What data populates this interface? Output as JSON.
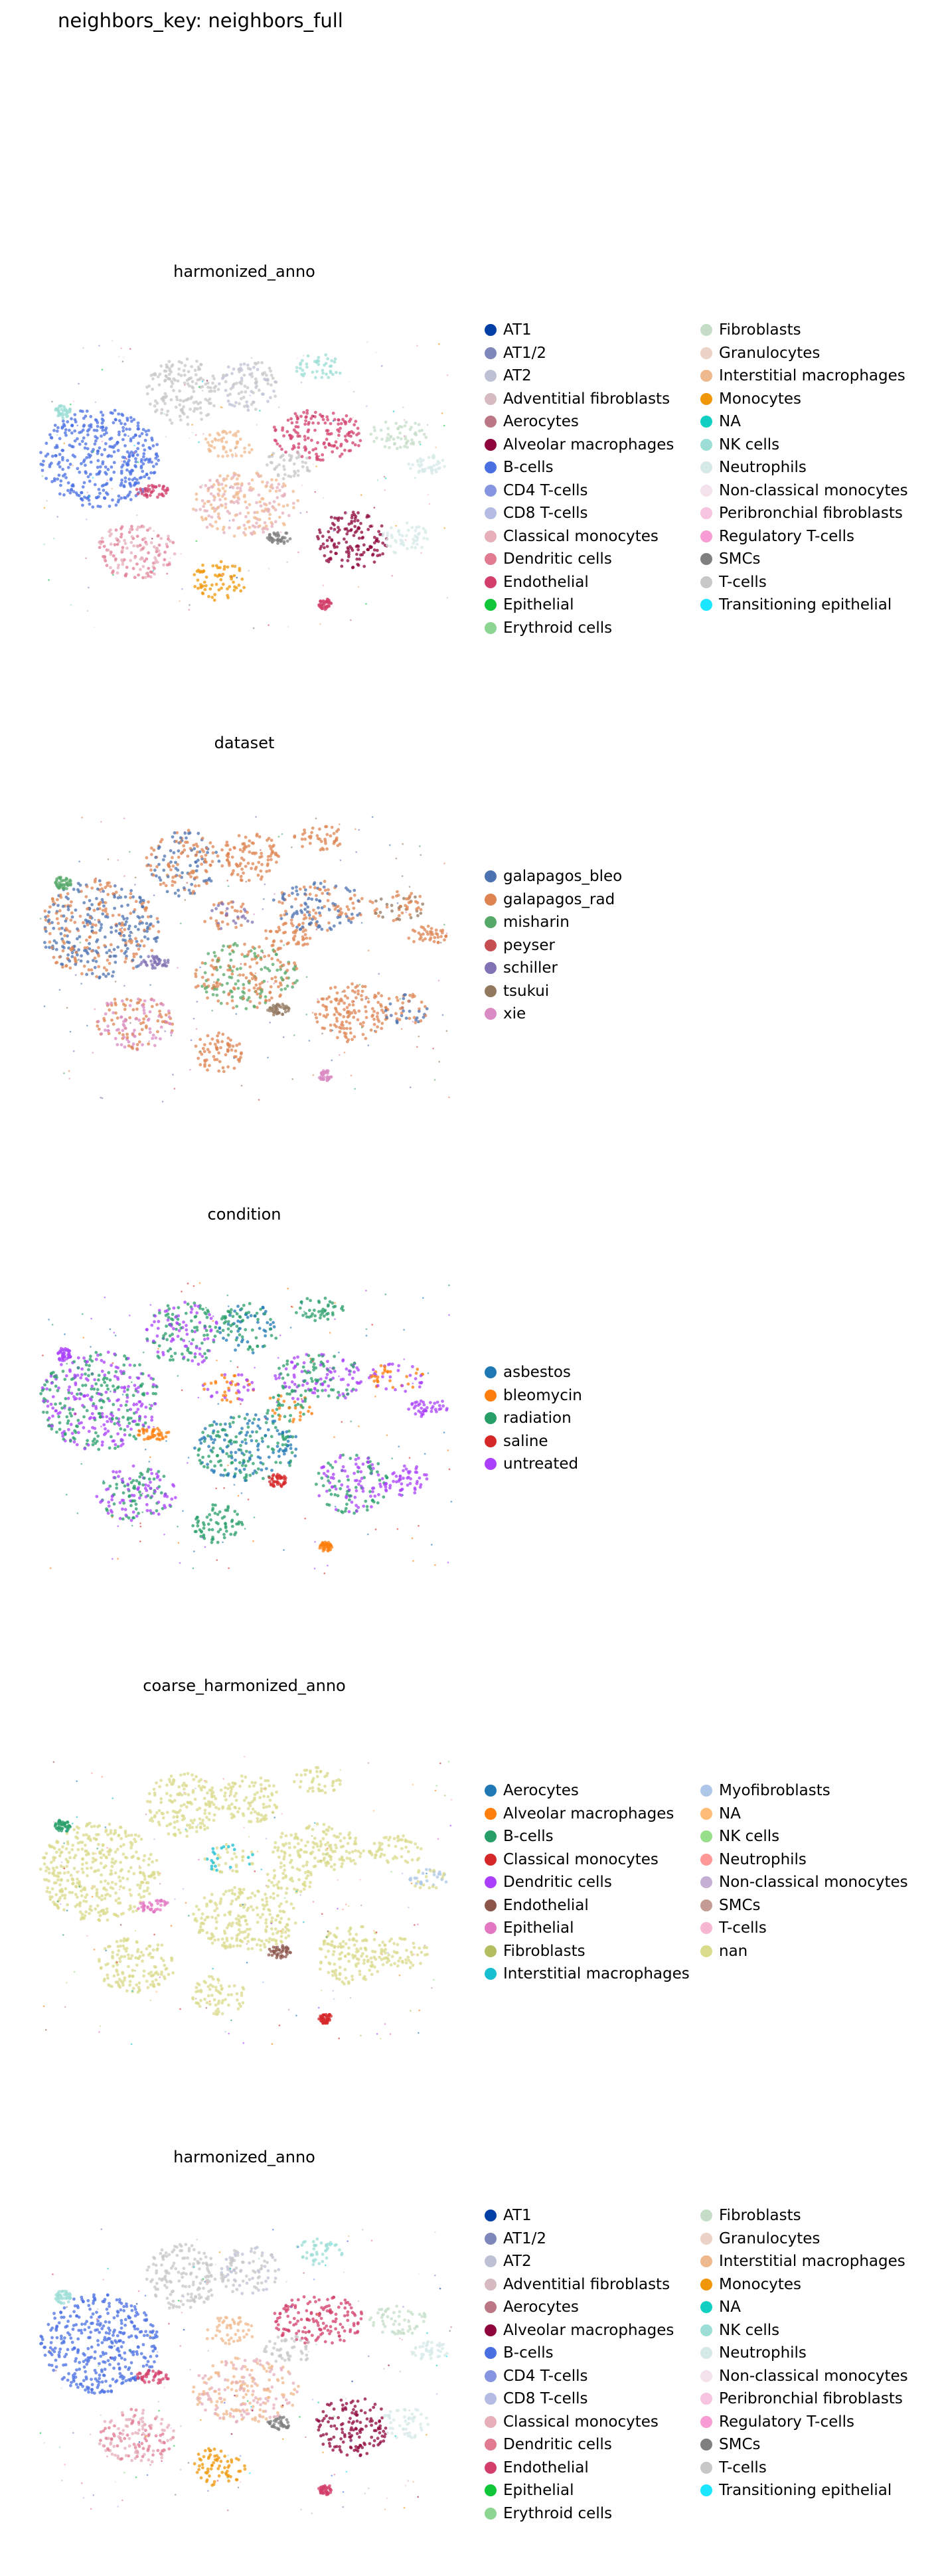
{
  "suptitle": "neighbors_key: neighbors_full",
  "chart_data": [
    {
      "type": "scatter",
      "title": "harmonized_anno",
      "xlabel": "",
      "ylabel": "",
      "axes": "off",
      "legend_location": "right",
      "legend_columns": 2,
      "categories": [
        {
          "name": "AT1",
          "color": "#023fa5"
        },
        {
          "name": "AT1/2",
          "color": "#7d87b9"
        },
        {
          "name": "AT2",
          "color": "#bec1d4"
        },
        {
          "name": "Adventitial fibroblasts",
          "color": "#d6bcc0"
        },
        {
          "name": "Aerocytes",
          "color": "#bb7784"
        },
        {
          "name": "Alveolar macrophages",
          "color": "#8e063b"
        },
        {
          "name": "B-cells",
          "color": "#4a6fe3"
        },
        {
          "name": "CD4 T-cells",
          "color": "#8595e1"
        },
        {
          "name": "CD8 T-cells",
          "color": "#b5bbe3"
        },
        {
          "name": "Classical monocytes",
          "color": "#e6afb9"
        },
        {
          "name": "Dendritic cells",
          "color": "#e07b91"
        },
        {
          "name": "Endothelial",
          "color": "#d33f6a"
        },
        {
          "name": "Epithelial",
          "color": "#11c638"
        },
        {
          "name": "Erythroid cells",
          "color": "#8dd593"
        },
        {
          "name": "Fibroblasts",
          "color": "#c6dec7"
        },
        {
          "name": "Granulocytes",
          "color": "#ead3c6"
        },
        {
          "name": "Interstitial macrophages",
          "color": "#f0b98d"
        },
        {
          "name": "Monocytes",
          "color": "#ef9708"
        },
        {
          "name": "NA",
          "color": "#0fcfc0"
        },
        {
          "name": "NK cells",
          "color": "#9cded6"
        },
        {
          "name": "Neutrophils",
          "color": "#d5eae7"
        },
        {
          "name": "Non-classical monocytes",
          "color": "#f3e1eb"
        },
        {
          "name": "Peribronchial fibroblasts",
          "color": "#f6c4e1"
        },
        {
          "name": "Regulatory T-cells",
          "color": "#f79cd4"
        },
        {
          "name": "SMCs",
          "color": "#7f7f7f"
        },
        {
          "name": "T-cells",
          "color": "#c7c7c7"
        },
        {
          "name": "Transitioning epithelial",
          "color": "#1ce6ff"
        }
      ]
    },
    {
      "type": "scatter",
      "title": "dataset",
      "xlabel": "",
      "ylabel": "",
      "axes": "off",
      "legend_location": "right",
      "legend_columns": 1,
      "categories": [
        {
          "name": "galapagos_bleo",
          "color": "#4c72b0"
        },
        {
          "name": "galapagos_rad",
          "color": "#dd8452"
        },
        {
          "name": "misharin",
          "color": "#55a868"
        },
        {
          "name": "peyser",
          "color": "#c44e52"
        },
        {
          "name": "schiller",
          "color": "#8172b3"
        },
        {
          "name": "tsukui",
          "color": "#937860"
        },
        {
          "name": "xie",
          "color": "#da8bc3"
        }
      ]
    },
    {
      "type": "scatter",
      "title": "condition",
      "xlabel": "",
      "ylabel": "",
      "axes": "off",
      "legend_location": "right",
      "legend_columns": 1,
      "categories": [
        {
          "name": "asbestos",
          "color": "#1f77b4"
        },
        {
          "name": "bleomycin",
          "color": "#ff7f0e"
        },
        {
          "name": "radiation",
          "color": "#279e68"
        },
        {
          "name": "saline",
          "color": "#d62728"
        },
        {
          "name": "untreated",
          "color": "#aa40fc"
        }
      ]
    },
    {
      "type": "scatter",
      "title": "coarse_harmonized_anno",
      "xlabel": "",
      "ylabel": "",
      "axes": "off",
      "legend_location": "right",
      "legend_columns": 2,
      "categories": [
        {
          "name": "Aerocytes",
          "color": "#1f77b4"
        },
        {
          "name": "Alveolar macrophages",
          "color": "#ff7f0e"
        },
        {
          "name": "B-cells",
          "color": "#279e68"
        },
        {
          "name": "Classical monocytes",
          "color": "#d62728"
        },
        {
          "name": "Dendritic cells",
          "color": "#aa40fc"
        },
        {
          "name": "Endothelial",
          "color": "#8c564b"
        },
        {
          "name": "Epithelial",
          "color": "#e377c2"
        },
        {
          "name": "Fibroblasts",
          "color": "#b5bd61"
        },
        {
          "name": "Interstitial macrophages",
          "color": "#17becf"
        },
        {
          "name": "Myofibroblasts",
          "color": "#aec7e8"
        },
        {
          "name": "NA",
          "color": "#ffbb78"
        },
        {
          "name": "NK cells",
          "color": "#98df8a"
        },
        {
          "name": "Neutrophils",
          "color": "#ff9896"
        },
        {
          "name": "Non-classical monocytes",
          "color": "#c5b0d5"
        },
        {
          "name": "SMCs",
          "color": "#c49c94"
        },
        {
          "name": "T-cells",
          "color": "#f7b6d2"
        },
        {
          "name": "nan",
          "color": "#dbdb8d"
        }
      ]
    },
    {
      "type": "scatter",
      "title": "harmonized_anno",
      "xlabel": "",
      "ylabel": "",
      "axes": "off",
      "legend_location": "right",
      "legend_columns": 2,
      "categories": [
        {
          "name": "AT1",
          "color": "#023fa5"
        },
        {
          "name": "AT1/2",
          "color": "#7d87b9"
        },
        {
          "name": "AT2",
          "color": "#bec1d4"
        },
        {
          "name": "Adventitial fibroblasts",
          "color": "#d6bcc0"
        },
        {
          "name": "Aerocytes",
          "color": "#bb7784"
        },
        {
          "name": "Alveolar macrophages",
          "color": "#8e063b"
        },
        {
          "name": "B-cells",
          "color": "#4a6fe3"
        },
        {
          "name": "CD4 T-cells",
          "color": "#8595e1"
        },
        {
          "name": "CD8 T-cells",
          "color": "#b5bbe3"
        },
        {
          "name": "Classical monocytes",
          "color": "#e6afb9"
        },
        {
          "name": "Dendritic cells",
          "color": "#e07b91"
        },
        {
          "name": "Endothelial",
          "color": "#d33f6a"
        },
        {
          "name": "Epithelial",
          "color": "#11c638"
        },
        {
          "name": "Erythroid cells",
          "color": "#8dd593"
        },
        {
          "name": "Fibroblasts",
          "color": "#c6dec7"
        },
        {
          "name": "Granulocytes",
          "color": "#ead3c6"
        },
        {
          "name": "Interstitial macrophages",
          "color": "#f0b98d"
        },
        {
          "name": "Monocytes",
          "color": "#ef9708"
        },
        {
          "name": "NA",
          "color": "#0fcfc0"
        },
        {
          "name": "NK cells",
          "color": "#9cded6"
        },
        {
          "name": "Neutrophils",
          "color": "#d5eae7"
        },
        {
          "name": "Non-classical monocytes",
          "color": "#f3e1eb"
        },
        {
          "name": "Peribronchial fibroblasts",
          "color": "#f6c4e1"
        },
        {
          "name": "Regulatory T-cells",
          "color": "#f79cd4"
        },
        {
          "name": "SMCs",
          "color": "#7f7f7f"
        },
        {
          "name": "T-cells",
          "color": "#c7c7c7"
        },
        {
          "name": "Transitioning epithelial",
          "color": "#1ce6ff"
        }
      ]
    }
  ]
}
